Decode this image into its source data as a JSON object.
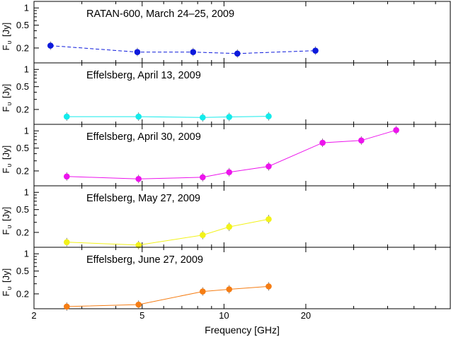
{
  "figure": {
    "xlabel": "Frequency [GHz]",
    "ylabel_main": "F",
    "ylabel_sub": "υ",
    "ylabel_unit": "[Jy]"
  },
  "chart_data": [
    {
      "type": "line",
      "title": "RATAN-600, March 24–25, 2009",
      "color": "#0d1adc",
      "dashed": true,
      "x": [
        2.3,
        4.8,
        7.7,
        11.2,
        21.7
      ],
      "y": [
        0.22,
        0.17,
        0.17,
        0.16,
        0.18
      ],
      "xscale": "log",
      "yscale": "log",
      "xlim": [
        2,
        68
      ],
      "ylim": [
        0.11,
        1.3
      ],
      "yticks": [
        "1",
        "0.5",
        "0.2"
      ]
    },
    {
      "type": "line",
      "title": "Effelsberg, April 13, 2009",
      "color": "#14ebeb",
      "dashed": false,
      "x": [
        2.64,
        4.85,
        8.35,
        10.45,
        14.6
      ],
      "y": [
        0.15,
        0.15,
        0.145,
        0.148,
        0.152
      ],
      "xscale": "log",
      "yscale": "log",
      "xlim": [
        2,
        68
      ],
      "ylim": [
        0.11,
        1.3
      ],
      "yticks": [
        "1",
        "0.5",
        "0.2"
      ]
    },
    {
      "type": "line",
      "title": "Effelsberg, April 30, 2009",
      "color": "#ec14ec",
      "dashed": false,
      "x": [
        2.64,
        4.85,
        8.35,
        10.45,
        14.6,
        23.05,
        32,
        43
      ],
      "y": [
        0.16,
        0.145,
        0.155,
        0.19,
        0.24,
        0.62,
        0.68,
        1.03
      ],
      "xscale": "log",
      "yscale": "log",
      "xlim": [
        2,
        68
      ],
      "ylim": [
        0.11,
        1.3
      ],
      "yticks": [
        "1",
        "0.5",
        "0.2"
      ]
    },
    {
      "type": "line",
      "title": "Effelsberg, May 27, 2009",
      "color": "#f2f21a",
      "dashed": false,
      "x": [
        2.64,
        4.85,
        8.35,
        10.45,
        14.6
      ],
      "y": [
        0.135,
        0.12,
        0.18,
        0.25,
        0.34
      ],
      "xscale": "log",
      "yscale": "log",
      "xlim": [
        2,
        68
      ],
      "ylim": [
        0.11,
        1.3
      ],
      "yticks": [
        "1",
        "0.5",
        "0.2"
      ]
    },
    {
      "type": "line",
      "title": "Effelsberg, June 27, 2009",
      "color": "#f57d14",
      "dashed": false,
      "x": [
        2.64,
        4.85,
        8.35,
        10.45,
        14.6
      ],
      "y": [
        0.12,
        0.13,
        0.22,
        0.24,
        0.27
      ],
      "xscale": "log",
      "yscale": "log",
      "xlim": [
        2,
        68
      ],
      "ylim": [
        0.11,
        1.3
      ],
      "yticks": [
        "1",
        "0.5",
        "0.2"
      ],
      "xticks": [
        "2",
        "5",
        "10",
        "20"
      ]
    }
  ]
}
